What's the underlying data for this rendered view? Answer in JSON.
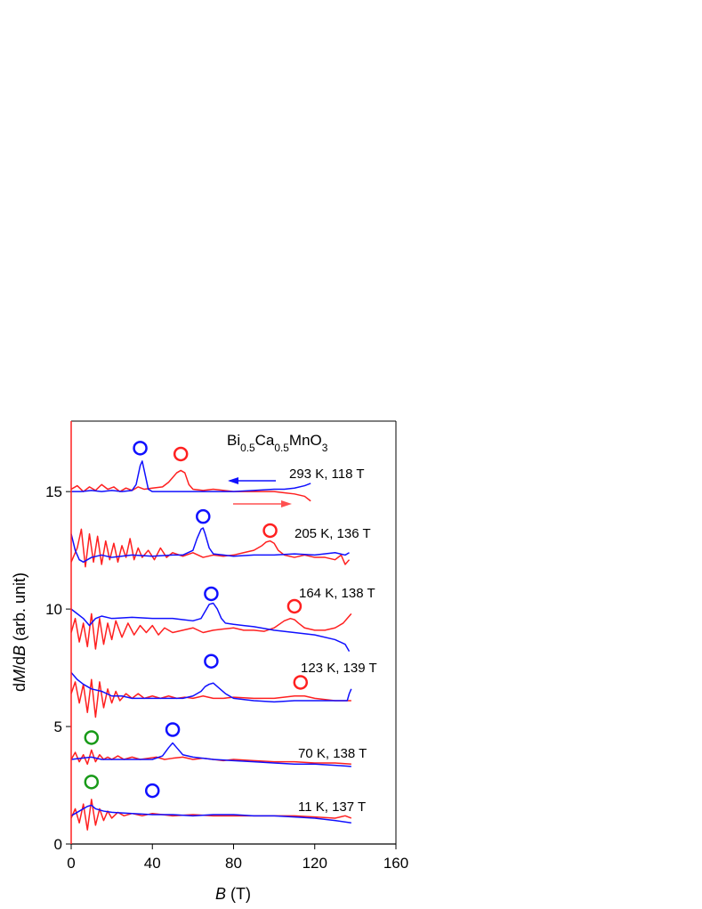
{
  "chart_data": {
    "type": "line",
    "title": [
      {
        "text": "Bi"
      },
      {
        "text": "0.5",
        "sub": true
      },
      {
        "text": "Ca"
      },
      {
        "text": "0.5",
        "sub": true
      },
      {
        "text": "MnO"
      },
      {
        "text": "3",
        "sub": true
      }
    ],
    "x_label": [
      {
        "text": "B",
        "italic": true
      },
      {
        "text": " (T)"
      }
    ],
    "y_label": [
      {
        "text": "d"
      },
      {
        "text": "M",
        "italic": true
      },
      {
        "text": "/d"
      },
      {
        "text": "B",
        "italic": true
      },
      {
        "text": " (arb. unit)"
      }
    ],
    "xlim": [
      0,
      160
    ],
    "xticks": [
      0,
      40,
      80,
      120,
      160
    ],
    "ylim": [
      0,
      18
    ],
    "yticks": [
      0,
      5,
      10,
      15
    ],
    "annotations": [
      "293 K,  118 T",
      "205 K, 136 T",
      "164 K, 138 T",
      "123 K, 139 T",
      "70 K, 138 T",
      "11 K, 137 T"
    ],
    "series": [
      {
        "color": "#ff2020",
        "x": [
          0,
          3,
          6,
          9,
          12,
          15,
          18,
          21,
          24,
          27,
          30,
          33,
          36,
          40,
          45,
          48,
          50,
          52,
          54,
          56,
          58,
          60,
          65,
          70,
          80,
          90,
          100,
          105,
          110,
          115,
          118
        ],
        "values": [
          15.1,
          15.25,
          15.0,
          15.2,
          15.05,
          15.3,
          15.1,
          15.2,
          15.0,
          15.15,
          15.05,
          15.2,
          15.1,
          15.15,
          15.2,
          15.4,
          15.6,
          15.8,
          15.9,
          15.8,
          15.3,
          15.1,
          15.05,
          15.1,
          15.0,
          15.0,
          15.0,
          14.95,
          14.9,
          14.8,
          14.6
        ]
      },
      {
        "color": "#1010ff",
        "x": [
          0,
          5,
          10,
          15,
          20,
          25,
          30,
          32,
          34,
          35,
          36,
          38,
          40,
          45,
          50,
          60,
          70,
          80,
          90,
          100,
          105,
          110,
          115,
          118
        ],
        "values": [
          15.0,
          15.0,
          15.05,
          15.0,
          15.05,
          15.0,
          15.05,
          15.3,
          16.1,
          16.3,
          15.9,
          15.1,
          15.0,
          15.0,
          15.0,
          15.0,
          15.0,
          15.0,
          15.05,
          15.1,
          15.1,
          15.15,
          15.25,
          15.35
        ]
      },
      {
        "color": "#ff2020",
        "x": [
          0,
          3,
          5,
          7,
          9,
          11,
          13,
          15,
          17,
          19,
          21,
          23,
          25,
          27,
          29,
          31,
          33,
          35,
          38,
          41,
          44,
          47,
          50,
          55,
          60,
          65,
          70,
          75,
          80,
          85,
          90,
          94,
          96,
          98,
          100,
          102,
          105,
          110,
          115,
          120,
          125,
          130,
          133,
          135,
          137
        ],
        "values": [
          12.0,
          12.6,
          13.4,
          11.8,
          13.2,
          12.0,
          13.1,
          11.9,
          12.9,
          12.1,
          12.8,
          12.0,
          12.7,
          12.2,
          13.0,
          12.1,
          12.6,
          12.2,
          12.5,
          12.1,
          12.6,
          12.2,
          12.4,
          12.25,
          12.4,
          12.2,
          12.3,
          12.25,
          12.3,
          12.4,
          12.5,
          12.7,
          12.85,
          12.9,
          12.8,
          12.5,
          12.3,
          12.2,
          12.3,
          12.2,
          12.2,
          12.1,
          12.3,
          11.9,
          12.1
        ]
      },
      {
        "color": "#1010ff",
        "x": [
          0,
          2,
          4,
          6,
          10,
          15,
          20,
          30,
          40,
          50,
          55,
          60,
          62,
          64,
          65,
          66,
          68,
          70,
          75,
          80,
          90,
          100,
          110,
          120,
          130,
          135,
          137
        ],
        "values": [
          13.2,
          12.5,
          12.1,
          12.0,
          12.2,
          12.3,
          12.2,
          12.3,
          12.25,
          12.3,
          12.3,
          12.5,
          13.0,
          13.4,
          13.45,
          13.2,
          12.6,
          12.35,
          12.3,
          12.25,
          12.3,
          12.3,
          12.35,
          12.3,
          12.4,
          12.3,
          12.4
        ]
      },
      {
        "color": "#ff2020",
        "x": [
          0,
          2,
          4,
          6,
          8,
          10,
          12,
          14,
          16,
          18,
          20,
          22,
          25,
          28,
          31,
          34,
          37,
          40,
          43,
          46,
          50,
          55,
          60,
          65,
          70,
          75,
          80,
          85,
          90,
          95,
          100,
          105,
          108,
          110,
          112,
          115,
          120,
          125,
          130,
          134,
          136,
          138
        ],
        "values": [
          9.0,
          9.6,
          8.6,
          9.4,
          8.4,
          9.8,
          8.3,
          9.6,
          8.5,
          9.4,
          8.7,
          9.5,
          8.8,
          9.4,
          8.9,
          9.3,
          9.0,
          9.3,
          8.9,
          9.2,
          9.0,
          9.1,
          9.2,
          9.0,
          9.1,
          9.15,
          9.2,
          9.1,
          9.1,
          9.05,
          9.2,
          9.5,
          9.6,
          9.55,
          9.4,
          9.2,
          9.1,
          9.1,
          9.2,
          9.4,
          9.6,
          9.8
        ]
      },
      {
        "color": "#1010ff",
        "x": [
          0,
          3,
          6,
          9,
          12,
          15,
          20,
          30,
          40,
          50,
          55,
          60,
          64,
          66,
          68,
          70,
          72,
          74,
          76,
          80,
          85,
          90,
          100,
          110,
          120,
          130,
          135,
          137
        ],
        "values": [
          10.0,
          9.8,
          9.6,
          9.3,
          9.6,
          9.7,
          9.6,
          9.65,
          9.6,
          9.6,
          9.55,
          9.5,
          9.6,
          9.9,
          10.2,
          10.25,
          10.0,
          9.6,
          9.4,
          9.35,
          9.3,
          9.25,
          9.1,
          9.0,
          8.9,
          8.7,
          8.5,
          8.2
        ]
      },
      {
        "color": "#ff2020",
        "x": [
          0,
          2,
          4,
          6,
          8,
          10,
          12,
          14,
          16,
          18,
          20,
          22,
          24,
          27,
          30,
          33,
          36,
          40,
          44,
          48,
          52,
          56,
          60,
          65,
          70,
          75,
          80,
          90,
          100,
          110,
          115,
          120,
          130,
          138
        ],
        "values": [
          6.4,
          6.9,
          6.0,
          6.8,
          5.6,
          7.0,
          5.4,
          6.9,
          5.8,
          6.6,
          6.0,
          6.5,
          6.1,
          6.4,
          6.2,
          6.4,
          6.2,
          6.3,
          6.2,
          6.3,
          6.2,
          6.25,
          6.2,
          6.3,
          6.2,
          6.2,
          6.25,
          6.2,
          6.2,
          6.3,
          6.3,
          6.2,
          6.1,
          6.1
        ]
      },
      {
        "color": "#1010ff",
        "x": [
          0,
          3,
          6,
          10,
          15,
          20,
          25,
          30,
          40,
          50,
          55,
          60,
          64,
          66,
          68,
          70,
          72,
          76,
          80,
          90,
          100,
          110,
          120,
          130,
          136,
          137,
          138
        ],
        "values": [
          7.3,
          7.0,
          6.8,
          6.6,
          6.5,
          6.3,
          6.3,
          6.2,
          6.2,
          6.2,
          6.2,
          6.3,
          6.5,
          6.7,
          6.8,
          6.85,
          6.7,
          6.4,
          6.2,
          6.1,
          6.05,
          6.1,
          6.1,
          6.1,
          6.1,
          6.4,
          6.6
        ]
      },
      {
        "color": "#ff2020",
        "x": [
          0,
          2,
          4,
          6,
          8,
          10,
          12,
          14,
          16,
          18,
          20,
          23,
          26,
          30,
          34,
          38,
          42,
          46,
          50,
          55,
          60,
          65,
          70,
          75,
          80,
          90,
          100,
          110,
          120,
          130,
          138
        ],
        "values": [
          3.6,
          3.9,
          3.5,
          3.8,
          3.4,
          4.0,
          3.5,
          3.8,
          3.6,
          3.7,
          3.6,
          3.75,
          3.6,
          3.7,
          3.6,
          3.65,
          3.7,
          3.6,
          3.65,
          3.7,
          3.6,
          3.65,
          3.6,
          3.55,
          3.6,
          3.55,
          3.5,
          3.5,
          3.45,
          3.45,
          3.4
        ]
      },
      {
        "color": "#1010ff",
        "x": [
          0,
          5,
          10,
          15,
          20,
          30,
          40,
          45,
          48,
          50,
          52,
          55,
          60,
          70,
          80,
          90,
          100,
          110,
          120,
          130,
          138
        ],
        "values": [
          3.6,
          3.65,
          3.7,
          3.6,
          3.6,
          3.6,
          3.6,
          3.75,
          4.1,
          4.3,
          4.1,
          3.8,
          3.7,
          3.6,
          3.55,
          3.5,
          3.45,
          3.4,
          3.4,
          3.35,
          3.3
        ]
      },
      {
        "color": "#ff2020",
        "x": [
          0,
          2,
          4,
          6,
          8,
          10,
          12,
          14,
          16,
          18,
          20,
          23,
          26,
          30,
          35,
          40,
          45,
          50,
          60,
          70,
          80,
          90,
          100,
          110,
          120,
          130,
          135,
          138
        ],
        "values": [
          1.1,
          1.5,
          0.9,
          1.7,
          0.6,
          1.9,
          0.8,
          1.5,
          1.0,
          1.4,
          1.1,
          1.35,
          1.2,
          1.3,
          1.2,
          1.3,
          1.25,
          1.2,
          1.25,
          1.2,
          1.2,
          1.2,
          1.2,
          1.2,
          1.15,
          1.1,
          1.2,
          1.1
        ]
      },
      {
        "color": "#1010ff",
        "x": [
          0,
          4,
          8,
          10,
          12,
          16,
          20,
          30,
          40,
          50,
          60,
          70,
          80,
          90,
          100,
          110,
          120,
          130,
          138
        ],
        "values": [
          1.2,
          1.4,
          1.6,
          1.65,
          1.5,
          1.4,
          1.35,
          1.3,
          1.25,
          1.25,
          1.2,
          1.25,
          1.25,
          1.2,
          1.2,
          1.15,
          1.1,
          1.0,
          0.9
        ]
      }
    ],
    "markers": [
      {
        "x": 34,
        "y": 16.85,
        "color": "#1010ff"
      },
      {
        "x": 54,
        "y": 16.6,
        "color": "#ff2020"
      },
      {
        "x": 65,
        "y": 13.94,
        "color": "#1010ff"
      },
      {
        "x": 98,
        "y": 13.34,
        "color": "#ff2020"
      },
      {
        "x": 69,
        "y": 10.65,
        "color": "#1010ff"
      },
      {
        "x": 110,
        "y": 10.12,
        "color": "#ff2020"
      },
      {
        "x": 69,
        "y": 7.78,
        "color": "#1010ff"
      },
      {
        "x": 113,
        "y": 6.88,
        "color": "#ff2020"
      },
      {
        "x": 10,
        "y": 4.53,
        "color": "#189a18"
      },
      {
        "x": 50,
        "y": 4.87,
        "color": "#1010ff"
      },
      {
        "x": 10,
        "y": 2.64,
        "color": "#189a18"
      },
      {
        "x": 40,
        "y": 2.27,
        "color": "#1010ff"
      }
    ]
  }
}
